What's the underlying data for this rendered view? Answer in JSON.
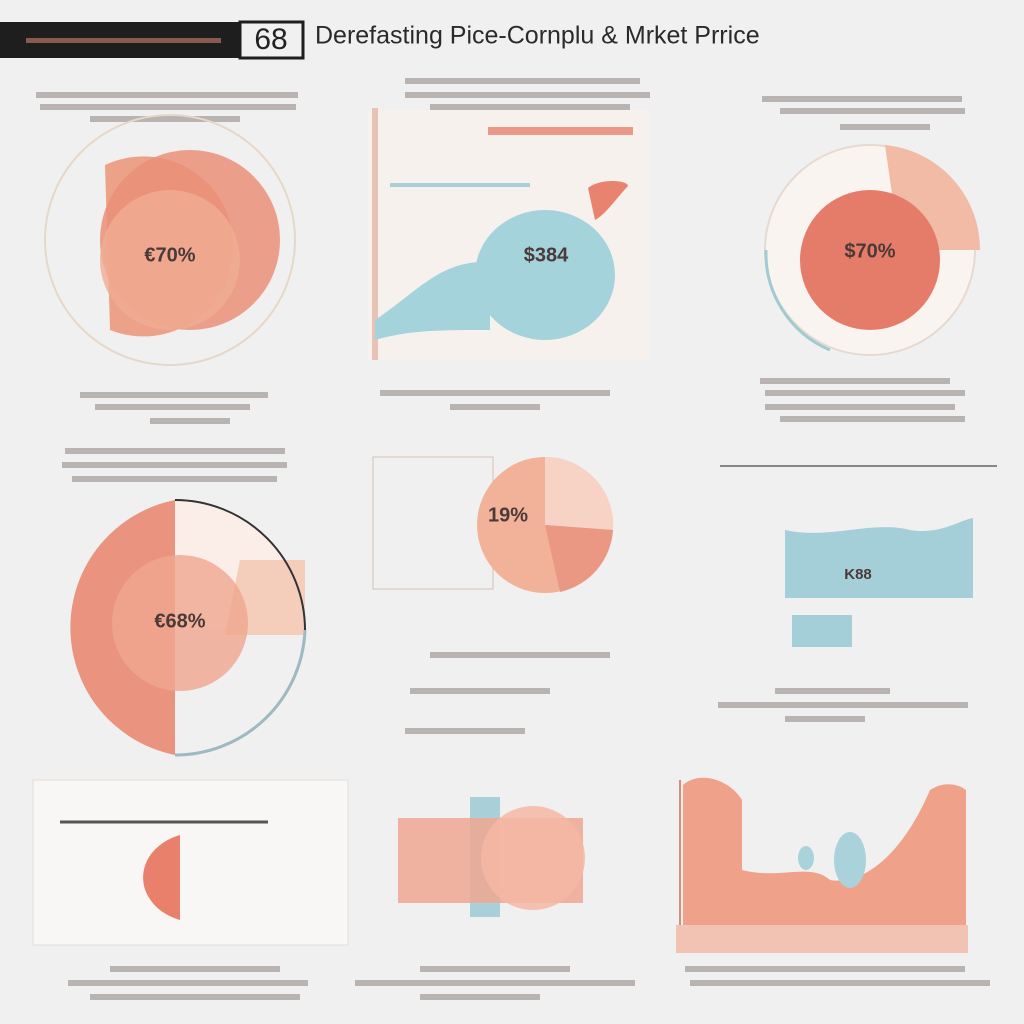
{
  "header": {
    "badge": "68",
    "title": "Derefasting Pice-Cornplu & Mrket Prrice"
  },
  "panels": [
    {
      "label": "€70%"
    },
    {
      "label": "$384"
    },
    {
      "label": "$70%"
    },
    {
      "label": "€68%"
    },
    {
      "label": "19%"
    },
    {
      "label": "K88"
    }
  ]
}
